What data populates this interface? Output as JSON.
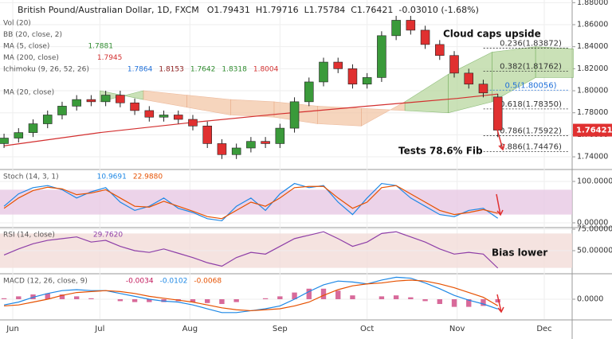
{
  "chart_data": [
    {
      "type": "candlestick",
      "title": "British Pound/Australian Dollar, 1D, FXCM",
      "header": [
        "O1.79431",
        "H1.79716",
        "L1.75784",
        "C1.76421",
        "-0.03010 (-1.68%)"
      ],
      "legend": [
        {
          "label": "Vol (20)",
          "readings": [],
          "reading_colors": []
        },
        {
          "label": "BB (20, close, 2)",
          "readings": [],
          "reading_colors": []
        },
        {
          "label": "MA (5, close)",
          "readings": [
            "1.7881"
          ],
          "reading_colors": [
            "#2e8b2e"
          ]
        },
        {
          "label": "MA (200, close)",
          "readings": [
            "1.7945"
          ],
          "reading_colors": [
            "#d32f2f"
          ]
        },
        {
          "label": "Ichimoku (9, 26, 52, 26)",
          "readings": [
            "1.7864",
            "1.8153",
            "1.7642",
            "1.8318",
            "1.8004"
          ],
          "reading_colors": [
            "#1e6fd9",
            "#8b1a1a",
            "#2e8b2e",
            "#2e8b2e",
            "#d32f2f"
          ]
        },
        {
          "label": "MA (20, close)",
          "readings": [],
          "reading_colors": []
        }
      ],
      "x": [
        -3,
        2,
        7,
        12,
        17,
        22,
        27,
        32,
        37,
        42,
        47,
        52,
        57,
        62,
        67,
        72,
        77,
        82,
        87,
        92,
        97,
        102,
        107,
        112,
        117,
        122,
        127,
        132,
        137,
        142,
        147,
        152,
        157,
        162,
        167
      ],
      "open": [
        1.752,
        1.757,
        1.762,
        1.77,
        1.778,
        1.786,
        1.792,
        1.79,
        1.796,
        1.789,
        1.782,
        1.776,
        1.778,
        1.774,
        1.768,
        1.752,
        1.742,
        1.748,
        1.754,
        1.752,
        1.766,
        1.79,
        1.808,
        1.826,
        1.82,
        1.806,
        1.812,
        1.85,
        1.864,
        1.855,
        1.842,
        1.832,
        1.816,
        1.806,
        1.79431
      ],
      "high": [
        1.761,
        1.766,
        1.774,
        1.782,
        1.79,
        1.796,
        1.796,
        1.8,
        1.8,
        1.793,
        1.786,
        1.782,
        1.782,
        1.778,
        1.772,
        1.756,
        1.752,
        1.758,
        1.758,
        1.77,
        1.794,
        1.812,
        1.83,
        1.83,
        1.824,
        1.816,
        1.854,
        1.868,
        1.868,
        1.859,
        1.846,
        1.836,
        1.82,
        1.81,
        1.79716
      ],
      "low": [
        1.748,
        1.753,
        1.758,
        1.766,
        1.774,
        1.782,
        1.786,
        1.786,
        1.785,
        1.778,
        1.772,
        1.772,
        1.77,
        1.764,
        1.748,
        1.738,
        1.738,
        1.744,
        1.748,
        1.748,
        1.762,
        1.786,
        1.804,
        1.816,
        1.802,
        1.802,
        1.808,
        1.846,
        1.851,
        1.838,
        1.828,
        1.812,
        1.802,
        1.794,
        1.75784
      ],
      "close": [
        1.757,
        1.762,
        1.77,
        1.778,
        1.786,
        1.792,
        1.79,
        1.796,
        1.789,
        1.782,
        1.776,
        1.778,
        1.774,
        1.768,
        1.752,
        1.742,
        1.748,
        1.754,
        1.752,
        1.766,
        1.79,
        1.808,
        1.826,
        1.82,
        1.806,
        1.812,
        1.85,
        1.864,
        1.855,
        1.842,
        1.832,
        1.816,
        1.806,
        1.798,
        1.76421
      ],
      "up_color": "#3a9a3a",
      "down_color": "#e03030",
      "overlays": [
        {
          "color": "#d32f2f",
          "x": [
            -3,
            30,
            61,
            92,
            122,
            153,
            167
          ],
          "values": [
            1.75,
            1.762,
            1.771,
            1.779,
            1.786,
            1.793,
            1.797
          ]
        }
      ],
      "cloud": {
        "x": [
          30,
          45,
          60,
          75,
          90,
          105,
          120,
          135,
          150,
          165,
          180,
          193
        ],
        "span_a": [
          1.8,
          1.792,
          1.785,
          1.778,
          1.776,
          1.77,
          1.768,
          1.79,
          1.815,
          1.835,
          1.84,
          1.838
        ],
        "span_b": [
          1.79,
          1.8,
          1.796,
          1.792,
          1.79,
          1.786,
          1.784,
          1.782,
          1.78,
          1.79,
          1.812,
          1.812
        ],
        "up_color": "#b9d8a0",
        "down_color": "#f3c7a8"
      },
      "fib_levels": [
        {
          "value": 1.83872,
          "label": "0.236(1.83872)",
          "color": "#333333"
        },
        {
          "value": 1.81762,
          "label": "0.382(1.81762)",
          "color": "#333333"
        },
        {
          "value": 1.80056,
          "label": "0.5(1.80056)",
          "color": "#1e6fd9"
        },
        {
          "value": 1.7835,
          "label": "0.618(1.78350)",
          "color": "#333333"
        },
        {
          "value": 1.75922,
          "label": "0.786(1.75922)",
          "color": "#333333"
        },
        {
          "value": 1.74476,
          "label": "0.886(1.74476)",
          "color": "#333333"
        }
      ],
      "last_price": {
        "value": 1.76421,
        "label": "1.76421",
        "color": "#e03030"
      },
      "annotations": [
        "Cloud caps upside",
        "Tests 78.6% Fib"
      ],
      "xlim": [
        -4.39,
        192.6
      ],
      "ylim": [
        1.7292,
        1.8824
      ],
      "yticks": [
        {
          "value": 1.88,
          "label": "1.88000"
        },
        {
          "value": 1.86,
          "label": "1.86000"
        },
        {
          "value": 1.84,
          "label": "1.84000"
        },
        {
          "value": 1.82,
          "label": "1.82000"
        },
        {
          "value": 1.8,
          "label": "1.80000"
        },
        {
          "value": 1.78,
          "label": "1.78000"
        },
        {
          "value": 1.76,
          "label": "1.76000"
        },
        {
          "value": 1.74,
          "label": "1.74000"
        }
      ]
    },
    {
      "type": "line",
      "legend": [
        {
          "label": "Stoch (14, 3, 1)",
          "readings": [
            "10.9691",
            "22.9880"
          ],
          "reading_colors": [
            "#1e88e5",
            "#e65100"
          ]
        }
      ],
      "band": [
        20,
        80
      ],
      "band_color": "#e7c8e4",
      "x": [
        -3,
        2,
        7,
        12,
        17,
        22,
        27,
        32,
        37,
        42,
        47,
        52,
        57,
        62,
        67,
        72,
        77,
        82,
        87,
        92,
        97,
        102,
        107,
        112,
        117,
        122,
        127,
        132,
        137,
        142,
        147,
        152,
        157,
        162,
        167
      ],
      "series": [
        {
          "color": "#1e88e5",
          "values": [
            40,
            70,
            85,
            90,
            80,
            60,
            75,
            85,
            50,
            30,
            40,
            60,
            35,
            25,
            10,
            5,
            40,
            60,
            30,
            70,
            95,
            85,
            90,
            50,
            20,
            60,
            95,
            90,
            60,
            40,
            20,
            15,
            30,
            35,
            10.9691
          ]
        },
        {
          "color": "#e65100",
          "values": [
            35,
            60,
            78,
            86,
            82,
            68,
            72,
            80,
            60,
            40,
            38,
            52,
            40,
            28,
            15,
            10,
            30,
            50,
            40,
            60,
            85,
            88,
            88,
            60,
            35,
            50,
            85,
            90,
            70,
            50,
            30,
            20,
            25,
            32,
            22.988
          ]
        }
      ],
      "xlim": [
        -4.39,
        192.6
      ],
      "ylim": [
        -9.6,
        126.9
      ],
      "yticks": [
        {
          "value": 100,
          "label": "100.00000"
        },
        {
          "value": 0,
          "label": "0.00000"
        }
      ]
    },
    {
      "type": "line",
      "legend": [
        {
          "label": "RSI (14, close)",
          "readings": [
            "29.7620"
          ],
          "reading_colors": [
            "#8e3fa8"
          ]
        }
      ],
      "band": [
        30,
        70
      ],
      "band_color": "#f3dcd8",
      "x": [
        -3,
        2,
        7,
        12,
        17,
        22,
        27,
        32,
        37,
        42,
        47,
        52,
        57,
        62,
        67,
        72,
        77,
        82,
        87,
        92,
        97,
        102,
        107,
        112,
        117,
        122,
        127,
        132,
        137,
        142,
        147,
        152,
        157,
        162,
        167
      ],
      "series": [
        {
          "color": "#8e3fa8",
          "values": [
            45,
            52,
            58,
            62,
            64,
            66,
            60,
            62,
            55,
            50,
            48,
            52,
            47,
            42,
            36,
            32,
            42,
            48,
            46,
            55,
            64,
            68,
            72,
            64,
            55,
            60,
            70,
            72,
            66,
            60,
            52,
            46,
            48,
            46,
            29.762
          ]
        }
      ],
      "annotations": [
        "Bias lower"
      ],
      "xlim": [
        -4.39,
        192.6
      ],
      "ylim": [
        24.1,
        75.9
      ],
      "yticks": [
        {
          "value": 75,
          "label": "75.00000"
        },
        {
          "value": 50,
          "label": "50.00000"
        }
      ]
    },
    {
      "type": "macd",
      "legend": [
        {
          "label": "MACD (12, 26, close, 9)",
          "readings": [
            "-0.0034",
            "-0.0102",
            "-0.0068"
          ],
          "reading_colors": [
            "#c2185b",
            "#1e88e5",
            "#e65100"
          ]
        }
      ],
      "x": [
        -3,
        2,
        7,
        12,
        17,
        22,
        27,
        32,
        37,
        42,
        47,
        52,
        57,
        62,
        67,
        72,
        77,
        82,
        87,
        92,
        97,
        102,
        107,
        112,
        117,
        122,
        127,
        132,
        137,
        142,
        147,
        152,
        157,
        162,
        167
      ],
      "histogram": {
        "color": "#d86a9a",
        "values": [
          0.001,
          0.003,
          0.005,
          0.006,
          0.005,
          0.003,
          0.001,
          0,
          -0.002,
          -0.003,
          -0.003,
          -0.003,
          -0.002,
          -0.003,
          -0.004,
          -0.005,
          -0.003,
          0,
          0.001,
          0.003,
          0.007,
          0.011,
          0.011,
          0.009,
          0.004,
          0,
          0.003,
          0.004,
          0.002,
          -0.002,
          -0.005,
          -0.008,
          -0.008,
          -0.007,
          -0.0034
        ]
      },
      "series": [
        {
          "color": "#1e88e5",
          "values": [
            -0.006,
            -0.003,
            0.002,
            0.006,
            0.009,
            0.01,
            0.009,
            0.009,
            0.006,
            0.003,
            0.0,
            -0.002,
            -0.003,
            -0.006,
            -0.01,
            -0.014,
            -0.014,
            -0.012,
            -0.01,
            -0.007,
            0.0,
            0.008,
            0.015,
            0.019,
            0.018,
            0.016,
            0.02,
            0.023,
            0.022,
            0.017,
            0.011,
            0.004,
            -0.001,
            -0.005,
            -0.0102
          ]
        },
        {
          "color": "#e65100",
          "values": [
            -0.007,
            -0.006,
            -0.003,
            0.0,
            0.004,
            0.007,
            0.008,
            0.009,
            0.008,
            0.006,
            0.003,
            0.001,
            -0.001,
            -0.003,
            -0.006,
            -0.009,
            -0.011,
            -0.012,
            -0.011,
            -0.01,
            -0.007,
            -0.003,
            0.004,
            0.01,
            0.014,
            0.016,
            0.017,
            0.019,
            0.02,
            0.019,
            0.016,
            0.012,
            0.007,
            0.002,
            -0.0068
          ]
        }
      ],
      "xlim": [
        -4.39,
        192.6
      ],
      "ylim": [
        -0.0208,
        0.0258
      ],
      "yticks": [
        {
          "value": 0,
          "label": "0.0000"
        }
      ],
      "xticks": [
        {
          "value": 0,
          "label": "Jun"
        },
        {
          "value": 30,
          "label": "Jul"
        },
        {
          "value": 61,
          "label": "Aug"
        },
        {
          "value": 92,
          "label": "Sep"
        },
        {
          "value": 122,
          "label": "Oct"
        },
        {
          "value": 153,
          "label": "Nov"
        },
        {
          "value": 183,
          "label": "Dec"
        }
      ]
    }
  ]
}
